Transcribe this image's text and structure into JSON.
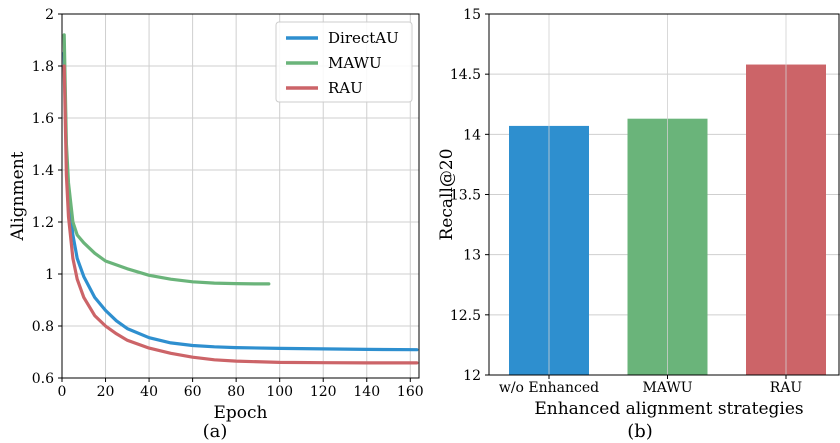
{
  "chart_data": [
    {
      "type": "line",
      "caption": "(a)",
      "xlabel": "Epoch",
      "ylabel": "Alignment",
      "xlim": [
        0,
        164
      ],
      "ylim": [
        0.6,
        2.0
      ],
      "xticks": [
        0,
        20,
        40,
        60,
        80,
        100,
        120,
        140,
        160
      ],
      "yticks": [
        0.6,
        0.8,
        1,
        1.2,
        1.4,
        1.6,
        1.8,
        2
      ],
      "ytick_labels": [
        "0.6",
        "0.8",
        "1",
        "1.2",
        "1.4",
        "1.6",
        "1.8",
        "2"
      ],
      "grid": true,
      "legend_position": "top-right",
      "series": [
        {
          "name": "DirectAU",
          "color": "#2e8fcf",
          "x": [
            1,
            2,
            3,
            5,
            7,
            10,
            15,
            20,
            25,
            30,
            40,
            50,
            60,
            70,
            80,
            100,
            120,
            140,
            163
          ],
          "y": [
            1.85,
            1.45,
            1.3,
            1.15,
            1.06,
            0.99,
            0.91,
            0.86,
            0.82,
            0.79,
            0.755,
            0.735,
            0.725,
            0.72,
            0.717,
            0.714,
            0.712,
            0.71,
            0.709
          ]
        },
        {
          "name": "MAWU",
          "color": "#6ab47a",
          "x": [
            1,
            2,
            3,
            5,
            7,
            10,
            15,
            20,
            30,
            40,
            50,
            60,
            70,
            80,
            90,
            95
          ],
          "y": [
            1.92,
            1.5,
            1.35,
            1.2,
            1.15,
            1.12,
            1.08,
            1.05,
            1.02,
            0.995,
            0.98,
            0.97,
            0.965,
            0.963,
            0.962,
            0.962
          ]
        },
        {
          "name": "RAU",
          "color": "#cc6468",
          "x": [
            1,
            2,
            3,
            5,
            7,
            10,
            15,
            20,
            25,
            30,
            40,
            50,
            60,
            70,
            80,
            100,
            120,
            140,
            163
          ],
          "y": [
            1.8,
            1.38,
            1.22,
            1.06,
            0.98,
            0.91,
            0.84,
            0.8,
            0.77,
            0.745,
            0.715,
            0.695,
            0.68,
            0.67,
            0.665,
            0.66,
            0.659,
            0.658,
            0.658
          ]
        }
      ]
    },
    {
      "type": "bar",
      "caption": "(b)",
      "xlabel": "Enhanced alignment strategies",
      "ylabel": "Recall@20",
      "ylim": [
        12,
        15
      ],
      "yticks": [
        12,
        12.5,
        13,
        13.5,
        14,
        14.5,
        15
      ],
      "ytick_labels": [
        "12",
        "12.5",
        "13",
        "13.5",
        "14",
        "14.5",
        "15"
      ],
      "grid": true,
      "categories": [
        "w/o Enhanced",
        "MAWU",
        "RAU"
      ],
      "values": [
        14.07,
        14.13,
        14.58
      ],
      "colors": [
        "#2e8fcf",
        "#6ab47a",
        "#cc6468"
      ]
    }
  ]
}
